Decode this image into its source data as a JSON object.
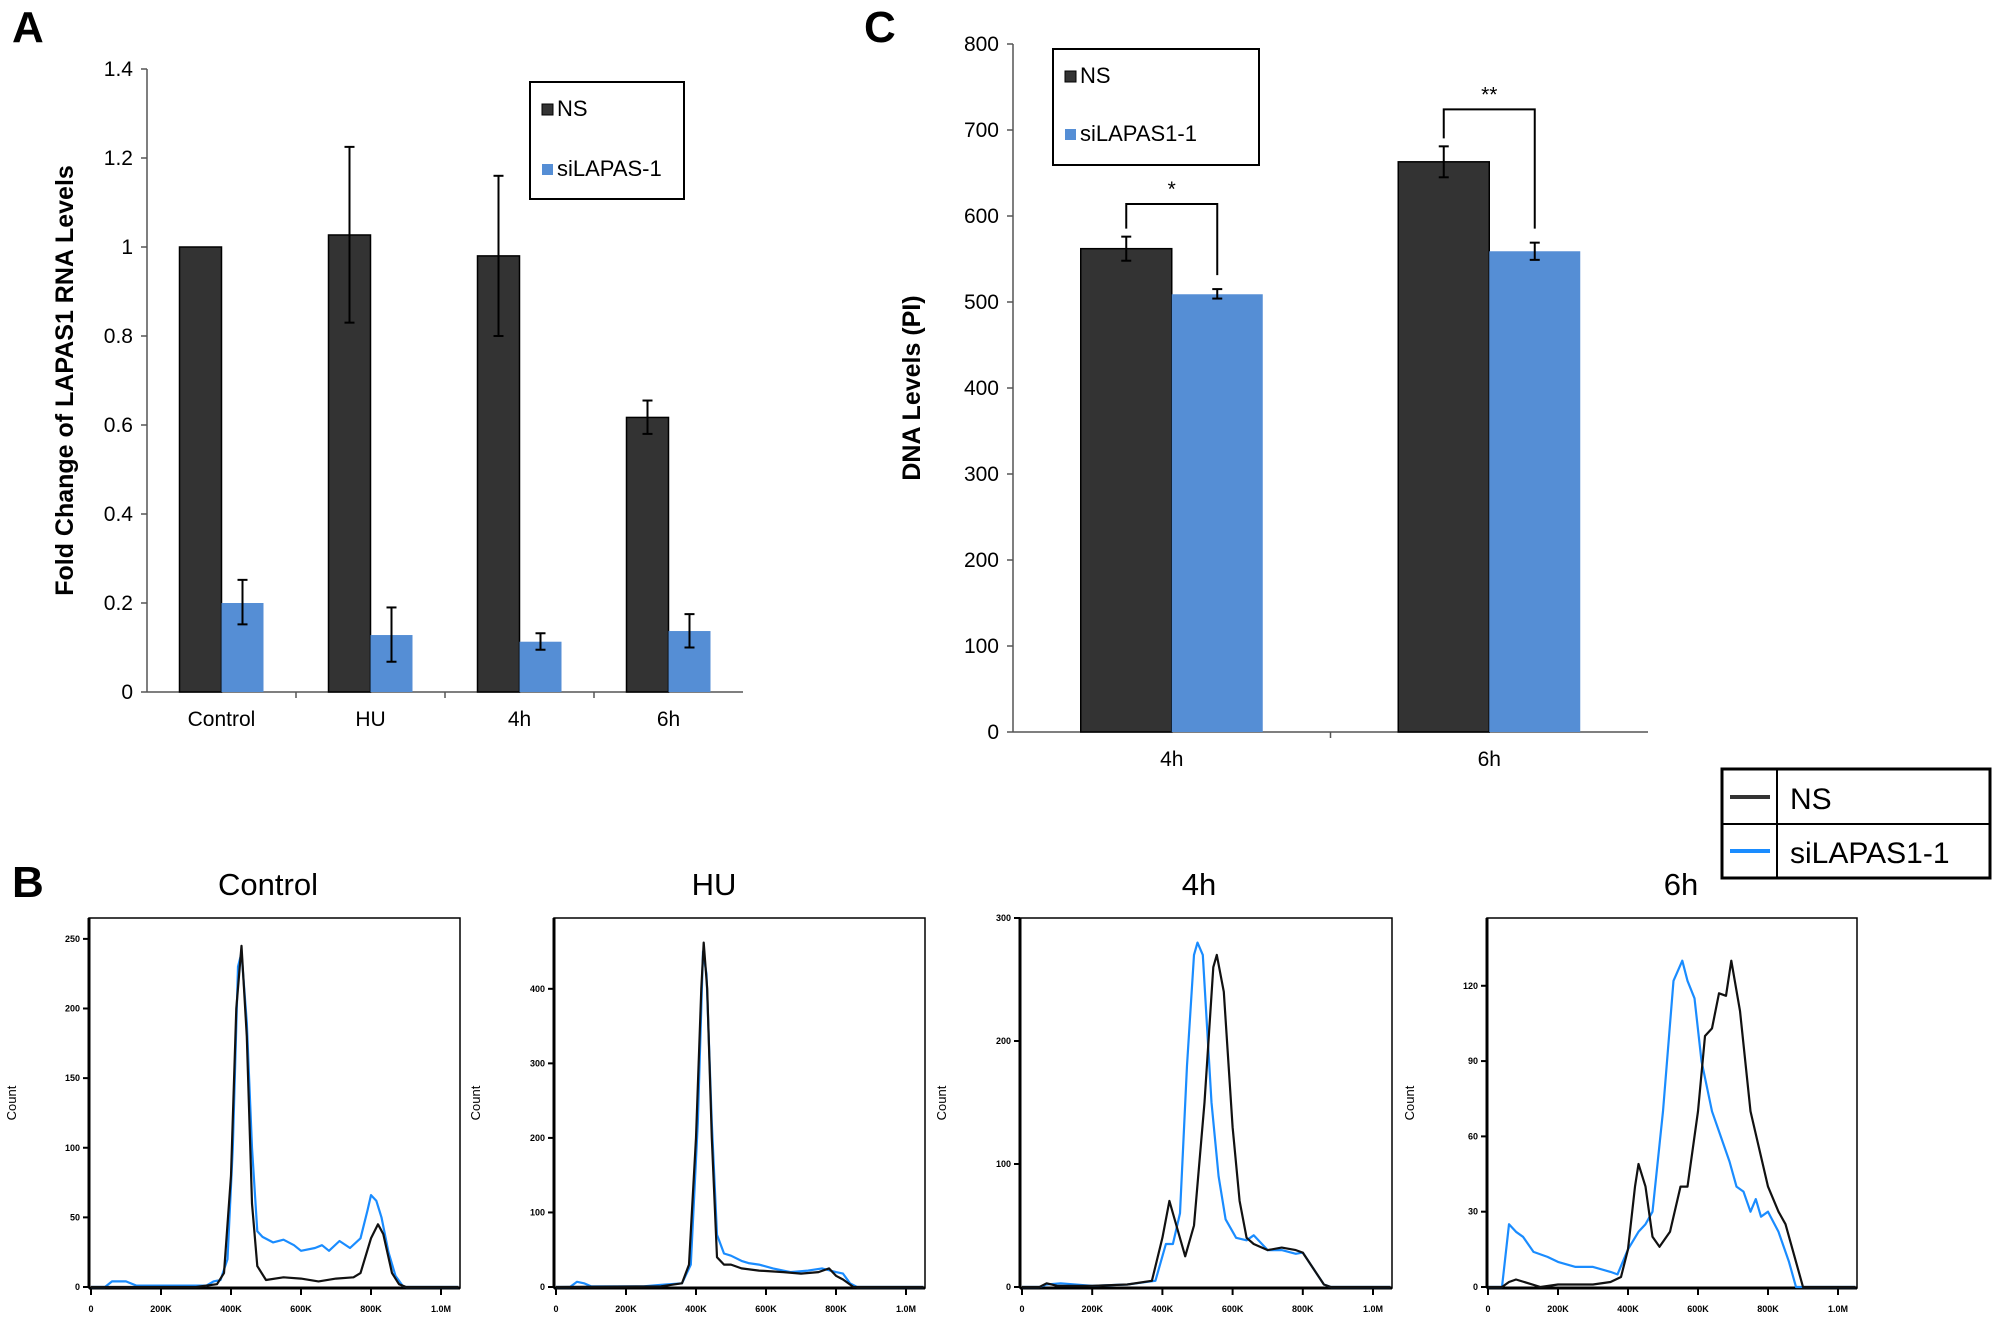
{
  "panel_labels": {
    "a": "A",
    "b": "B",
    "c": "C"
  },
  "colors": {
    "ns": "#333333",
    "si": "#558ed5",
    "hist_ns": "#111111",
    "hist_si": "#1a8cff"
  },
  "chart_data": [
    {
      "id": "A",
      "type": "bar",
      "ylabel": "Fold Change of LAPAS1 RNA Levels",
      "xlabel": "",
      "ylim": [
        0,
        1.4
      ],
      "yticks": [
        "0",
        "0.2",
        "0.4",
        "0.6",
        "0.8",
        "1",
        "1.2",
        "1.4"
      ],
      "categories": [
        "Control",
        "HU",
        "4h",
        "6h"
      ],
      "legend_position": "top-right",
      "series": [
        {
          "name": "NS",
          "values": [
            1.0,
            1.027,
            0.98,
            0.617
          ],
          "error_low": [
            null,
            0.83,
            0.8,
            0.58
          ],
          "error_high": [
            null,
            1.225,
            1.16,
            0.655
          ]
        },
        {
          "name": "siLAPAS-1",
          "values": [
            0.2,
            0.128,
            0.113,
            0.137
          ],
          "error_low": [
            0.152,
            0.068,
            0.095,
            0.1
          ],
          "error_high": [
            0.252,
            0.19,
            0.132,
            0.175
          ]
        }
      ]
    },
    {
      "id": "C",
      "type": "bar",
      "ylabel": "DNA Levels (PI)",
      "xlabel": "",
      "ylim": [
        0,
        800
      ],
      "yticks": [
        "0",
        "100",
        "200",
        "300",
        "400",
        "500",
        "600",
        "700",
        "800"
      ],
      "categories": [
        "4h",
        "6h"
      ],
      "legend_position": "top-left",
      "series": [
        {
          "name": "NS",
          "values": [
            562,
            663
          ],
          "error_low": [
            548,
            645
          ],
          "error_high": [
            576,
            681
          ]
        },
        {
          "name": "siLAPAS1-1",
          "values": [
            509,
            559
          ],
          "error_low": [
            504,
            549
          ],
          "error_high": [
            515,
            569
          ]
        }
      ],
      "significance": [
        {
          "category": "4h",
          "label": "*",
          "level": 614
        },
        {
          "category": "6h",
          "label": "**",
          "level": 724
        }
      ]
    },
    {
      "id": "B",
      "type": "line",
      "ylabel": "Count",
      "legend": [
        "NS",
        "siLAPAS1-1"
      ],
      "legend_position": "top-right",
      "xticks": [
        "0",
        "200K",
        "400K",
        "600K",
        "800K",
        "1.0M"
      ],
      "xlim_k": [
        0,
        1054
      ],
      "panels": [
        {
          "title": "Control",
          "ylim": [
            0,
            265
          ],
          "yticks": [
            0,
            50,
            100,
            150,
            200,
            250
          ],
          "ns": [
            [
              0,
              0
            ],
            [
              100,
              0
            ],
            [
              300,
              0
            ],
            [
              360,
              2
            ],
            [
              380,
              10
            ],
            [
              400,
              80
            ],
            [
              415,
              200
            ],
            [
              430,
              245
            ],
            [
              445,
              180
            ],
            [
              460,
              60
            ],
            [
              475,
              15
            ],
            [
              500,
              5
            ],
            [
              550,
              7
            ],
            [
              600,
              6
            ],
            [
              650,
              4
            ],
            [
              700,
              6
            ],
            [
              750,
              7
            ],
            [
              770,
              10
            ],
            [
              800,
              35
            ],
            [
              820,
              45
            ],
            [
              835,
              38
            ],
            [
              860,
              10
            ],
            [
              880,
              2
            ],
            [
              900,
              0
            ],
            [
              1050,
              0
            ]
          ],
          "si": [
            [
              0,
              0
            ],
            [
              40,
              0
            ],
            [
              60,
              4
            ],
            [
              100,
              4
            ],
            [
              130,
              1
            ],
            [
              200,
              1
            ],
            [
              330,
              1
            ],
            [
              350,
              4
            ],
            [
              370,
              5
            ],
            [
              390,
              20
            ],
            [
              405,
              100
            ],
            [
              420,
              230
            ],
            [
              430,
              240
            ],
            [
              445,
              190
            ],
            [
              460,
              100
            ],
            [
              475,
              40
            ],
            [
              490,
              36
            ],
            [
              520,
              32
            ],
            [
              550,
              34
            ],
            [
              580,
              30
            ],
            [
              600,
              26
            ],
            [
              640,
              28
            ],
            [
              660,
              30
            ],
            [
              680,
              26
            ],
            [
              710,
              33
            ],
            [
              740,
              28
            ],
            [
              770,
              35
            ],
            [
              790,
              55
            ],
            [
              800,
              66
            ],
            [
              815,
              62
            ],
            [
              830,
              50
            ],
            [
              850,
              25
            ],
            [
              870,
              8
            ],
            [
              890,
              1
            ],
            [
              900,
              0
            ],
            [
              1050,
              0
            ]
          ]
        },
        {
          "title": "HU",
          "ylim": [
            0,
            495
          ],
          "yticks": [
            0,
            100,
            200,
            300,
            400
          ],
          "ns": [
            [
              0,
              0
            ],
            [
              300,
              1
            ],
            [
              360,
              5
            ],
            [
              380,
              30
            ],
            [
              400,
              200
            ],
            [
              415,
              400
            ],
            [
              422,
              462
            ],
            [
              432,
              400
            ],
            [
              445,
              200
            ],
            [
              460,
              40
            ],
            [
              480,
              30
            ],
            [
              500,
              30
            ],
            [
              530,
              25
            ],
            [
              580,
              22
            ],
            [
              650,
              20
            ],
            [
              700,
              18
            ],
            [
              750,
              20
            ],
            [
              780,
              25
            ],
            [
              800,
              15
            ],
            [
              820,
              10
            ],
            [
              850,
              0
            ],
            [
              1050,
              0
            ]
          ],
          "si": [
            [
              0,
              0
            ],
            [
              40,
              0
            ],
            [
              60,
              7
            ],
            [
              80,
              5
            ],
            [
              100,
              1
            ],
            [
              250,
              1
            ],
            [
              300,
              3
            ],
            [
              360,
              5
            ],
            [
              385,
              30
            ],
            [
              405,
              220
            ],
            [
              420,
              450
            ],
            [
              430,
              420
            ],
            [
              445,
              220
            ],
            [
              460,
              70
            ],
            [
              480,
              45
            ],
            [
              500,
              42
            ],
            [
              530,
              35
            ],
            [
              550,
              32
            ],
            [
              580,
              30
            ],
            [
              620,
              25
            ],
            [
              670,
              20
            ],
            [
              720,
              22
            ],
            [
              760,
              25
            ],
            [
              800,
              20
            ],
            [
              820,
              18
            ],
            [
              840,
              5
            ],
            [
              860,
              0
            ],
            [
              1050,
              0
            ]
          ]
        },
        {
          "title": "4h",
          "ylim": [
            0,
            300
          ],
          "yticks": [
            0,
            100,
            200,
            300
          ],
          "ns": [
            [
              0,
              0
            ],
            [
              50,
              0
            ],
            [
              70,
              3
            ],
            [
              100,
              1
            ],
            [
              200,
              1
            ],
            [
              300,
              2
            ],
            [
              370,
              5
            ],
            [
              400,
              40
            ],
            [
              420,
              70
            ],
            [
              440,
              50
            ],
            [
              465,
              25
            ],
            [
              490,
              50
            ],
            [
              520,
              150
            ],
            [
              545,
              260
            ],
            [
              555,
              270
            ],
            [
              575,
              240
            ],
            [
              600,
              130
            ],
            [
              620,
              70
            ],
            [
              640,
              40
            ],
            [
              660,
              35
            ],
            [
              700,
              30
            ],
            [
              740,
              32
            ],
            [
              780,
              30
            ],
            [
              800,
              28
            ],
            [
              830,
              15
            ],
            [
              860,
              2
            ],
            [
              880,
              0
            ],
            [
              1050,
              0
            ]
          ],
          "si": [
            [
              0,
              0
            ],
            [
              50,
              0
            ],
            [
              70,
              2
            ],
            [
              110,
              3
            ],
            [
              200,
              1
            ],
            [
              300,
              2
            ],
            [
              380,
              5
            ],
            [
              410,
              35
            ],
            [
              430,
              35
            ],
            [
              450,
              60
            ],
            [
              470,
              180
            ],
            [
              490,
              270
            ],
            [
              500,
              280
            ],
            [
              515,
              270
            ],
            [
              540,
              150
            ],
            [
              560,
              90
            ],
            [
              580,
              55
            ],
            [
              610,
              40
            ],
            [
              640,
              38
            ],
            [
              660,
              42
            ],
            [
              700,
              30
            ],
            [
              740,
              30
            ],
            [
              780,
              27
            ],
            [
              800,
              28
            ],
            [
              830,
              15
            ],
            [
              860,
              2
            ],
            [
              880,
              0
            ],
            [
              1050,
              0
            ]
          ]
        },
        {
          "title": "6h",
          "ylim": [
            0,
            147
          ],
          "yticks": [
            0,
            30,
            60,
            90,
            120
          ],
          "ns": [
            [
              0,
              0
            ],
            [
              40,
              0
            ],
            [
              60,
              2
            ],
            [
              80,
              3
            ],
            [
              150,
              0
            ],
            [
              200,
              1
            ],
            [
              300,
              1
            ],
            [
              350,
              2
            ],
            [
              380,
              4
            ],
            [
              400,
              15
            ],
            [
              420,
              40
            ],
            [
              430,
              49
            ],
            [
              450,
              40
            ],
            [
              470,
              20
            ],
            [
              490,
              16
            ],
            [
              520,
              22
            ],
            [
              550,
              40
            ],
            [
              570,
              40
            ],
            [
              600,
              70
            ],
            [
              620,
              100
            ],
            [
              640,
              103
            ],
            [
              660,
              117
            ],
            [
              680,
              116
            ],
            [
              695,
              130
            ],
            [
              720,
              110
            ],
            [
              750,
              70
            ],
            [
              780,
              52
            ],
            [
              800,
              40
            ],
            [
              830,
              30
            ],
            [
              850,
              25
            ],
            [
              870,
              15
            ],
            [
              900,
              0
            ],
            [
              1050,
              0
            ]
          ],
          "si": [
            [
              0,
              0
            ],
            [
              40,
              0
            ],
            [
              60,
              25
            ],
            [
              80,
              22
            ],
            [
              100,
              20
            ],
            [
              130,
              14
            ],
            [
              170,
              12
            ],
            [
              200,
              10
            ],
            [
              250,
              8
            ],
            [
              300,
              8
            ],
            [
              350,
              6
            ],
            [
              370,
              5
            ],
            [
              400,
              15
            ],
            [
              430,
              22
            ],
            [
              450,
              25
            ],
            [
              470,
              30
            ],
            [
              500,
              70
            ],
            [
              530,
              122
            ],
            [
              555,
              130
            ],
            [
              570,
              122
            ],
            [
              590,
              115
            ],
            [
              610,
              90
            ],
            [
              640,
              70
            ],
            [
              660,
              62
            ],
            [
              690,
              50
            ],
            [
              710,
              40
            ],
            [
              730,
              38
            ],
            [
              750,
              30
            ],
            [
              765,
              35
            ],
            [
              780,
              28
            ],
            [
              800,
              30
            ],
            [
              830,
              22
            ],
            [
              860,
              10
            ],
            [
              880,
              0
            ],
            [
              1050,
              0
            ]
          ]
        }
      ]
    }
  ]
}
